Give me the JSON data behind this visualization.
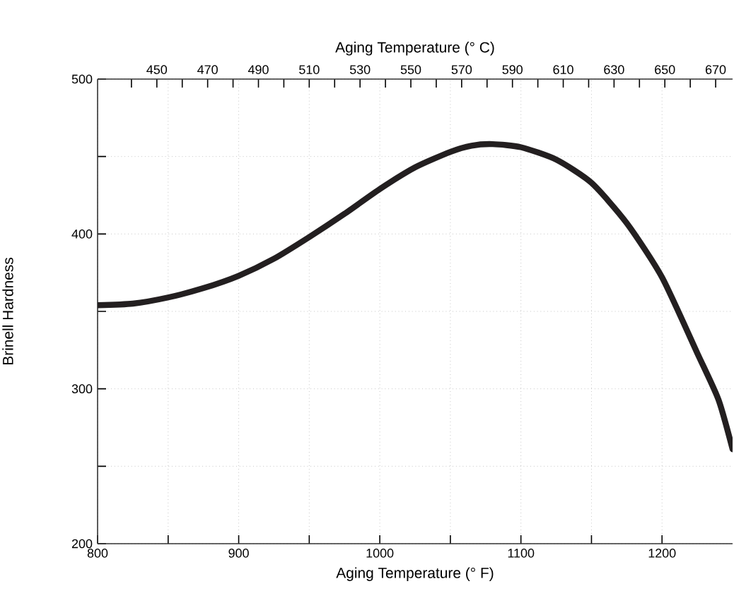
{
  "chart_data": {
    "type": "line",
    "xlabel": "Aging Temperature (° F)",
    "ylabel": "Brinell Hardness",
    "x2label": "Aging Temperature (° C)",
    "x": [
      800,
      825,
      850,
      875,
      900,
      925,
      950,
      975,
      1000,
      1025,
      1050,
      1065,
      1080,
      1100,
      1125,
      1150,
      1175,
      1200,
      1225,
      1240,
      1250
    ],
    "series": [
      {
        "color": "#231f20",
        "values": [
          354,
          355,
          359,
          365,
          373,
          384,
          398,
          413,
          429,
          443,
          453,
          457,
          458,
          456,
          448,
          433,
          407,
          372,
          323,
          293,
          261
        ]
      }
    ],
    "xlim": [
      800,
      1250
    ],
    "ylim": [
      200,
      500
    ],
    "xticks": [
      800,
      {
        "value": 850,
        "label": null
      },
      900,
      {
        "value": 950,
        "label": null
      },
      1000,
      {
        "value": 1050,
        "label": null
      },
      1100,
      {
        "value": 1150,
        "label": null
      },
      1200
    ],
    "yticks": [
      200,
      {
        "value": 250,
        "label": null
      },
      300,
      {
        "value": 350,
        "label": null
      },
      400,
      {
        "value": 450,
        "label": null
      },
      500
    ],
    "x2lim": [
      426.67,
      676.67
    ],
    "x2ticks": [
      {
        "value": 440,
        "label": null
      },
      450,
      {
        "value": 460,
        "label": null
      },
      470,
      {
        "value": 480,
        "label": null
      },
      490,
      {
        "value": 500,
        "label": null
      },
      510,
      {
        "value": 520,
        "label": null
      },
      530,
      {
        "value": 540,
        "label": null
      },
      550,
      {
        "value": 560,
        "label": null
      },
      570,
      {
        "value": 580,
        "label": null
      },
      590,
      {
        "value": 600,
        "label": null
      },
      610,
      {
        "value": 620,
        "label": null
      },
      630,
      {
        "value": 640,
        "label": null
      },
      650,
      {
        "value": 660,
        "label": null
      },
      670
    ],
    "grid": true,
    "line_style": "solid"
  }
}
